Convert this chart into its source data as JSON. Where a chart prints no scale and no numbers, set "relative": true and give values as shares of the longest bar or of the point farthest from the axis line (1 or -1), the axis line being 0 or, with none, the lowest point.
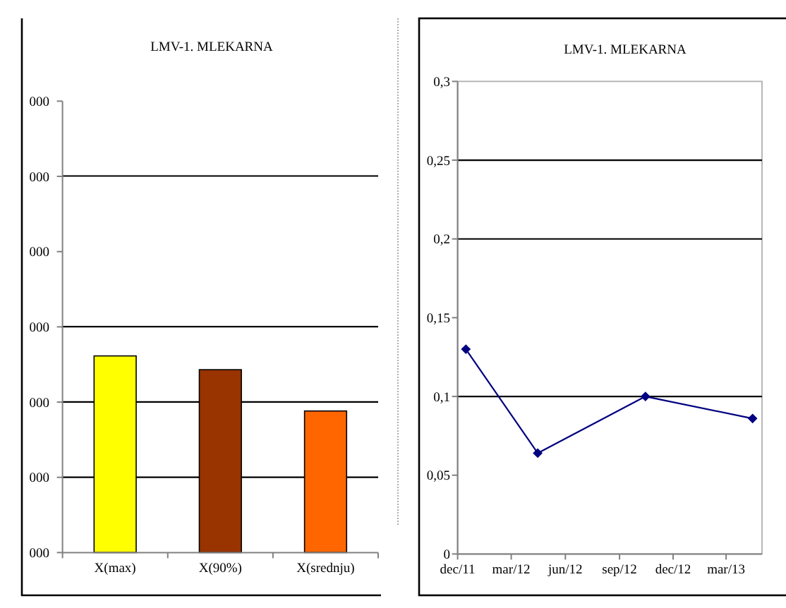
{
  "chart_data": [
    {
      "type": "bar",
      "title": "LMV-1. MLEKARNA",
      "categories": [
        "X(max)",
        "X(90%)",
        "X(srednju)"
      ],
      "values": [
        1,
        0.93,
        0.72
      ],
      "colors": [
        "#ffff00",
        "#993300",
        "#ff6600"
      ],
      "relative": true,
      "ref_lines": [
        {
          "axis": "y",
          "value": 0.383,
          "color": "#000000"
        },
        {
          "axis": "y",
          "value": 0.766,
          "color": "#000000"
        },
        {
          "axis": "y",
          "value": 1.149,
          "color": "#000000"
        },
        {
          "axis": "y",
          "value": 1.915,
          "color": "#000000"
        }
      ],
      "annotations": [
        "000",
        "000",
        "000",
        "000",
        "000",
        "000",
        "000"
      ]
    },
    {
      "type": "line",
      "title": "LMV-1. MLEKARNA",
      "x": [
        "2011-12-15",
        "2012-04-15",
        "2012-10-15",
        "2013-04-15"
      ],
      "values": [
        0.13,
        0.064,
        0.1,
        0.086
      ],
      "color": "#000080",
      "marker": "diamond",
      "xlim": [
        "2011-12-01",
        "2013-05-01"
      ],
      "xticks": [
        {
          "value": "2011-12-01",
          "label": "dec/11"
        },
        {
          "value": "2012-03-01",
          "label": "mar/12"
        },
        {
          "value": "2012-06-01",
          "label": "jun/12"
        },
        {
          "value": "2012-09-01",
          "label": "sep/12"
        },
        {
          "value": "2012-12-01",
          "label": "dec/12"
        },
        {
          "value": "2013-03-01",
          "label": "mar/13"
        }
      ],
      "ylim": [
        0,
        0.3
      ],
      "yticks": [
        0,
        {
          "value": 0.05,
          "label": "0,05"
        },
        {
          "value": 0.1,
          "label": "0,1"
        },
        {
          "value": 0.15,
          "label": "0,15"
        },
        {
          "value": 0.2,
          "label": "0,2"
        },
        {
          "value": 0.25,
          "label": "0,25"
        },
        {
          "value": 0.3,
          "label": "0,3"
        }
      ],
      "ref_lines": [
        {
          "axis": "y",
          "value": 0.1,
          "color": "#000000"
        },
        {
          "axis": "y",
          "value": 0.2,
          "color": "#000000"
        },
        {
          "axis": "y",
          "value": 0.25,
          "color": "#000000"
        }
      ]
    }
  ]
}
